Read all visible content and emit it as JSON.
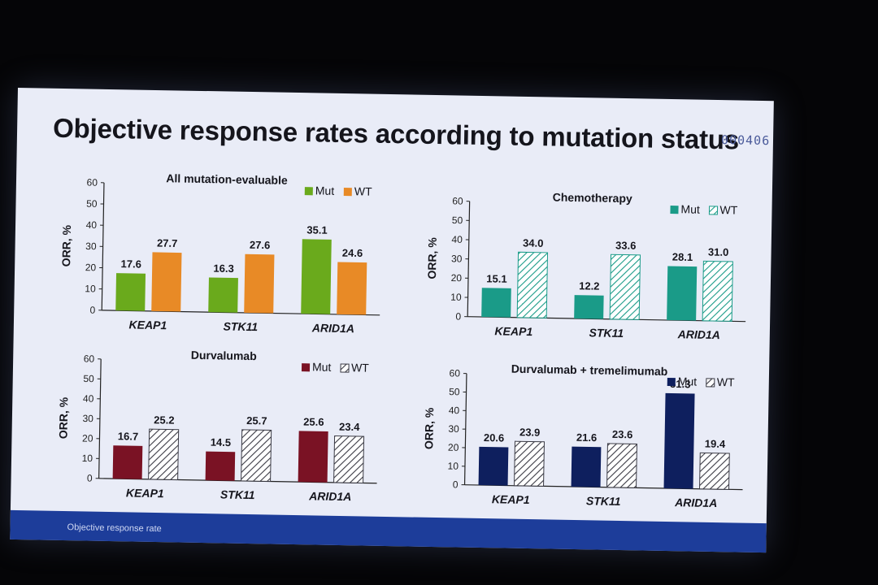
{
  "slide": {
    "title": "Objective response rates according to mutation status",
    "counter": "000406",
    "footnote": "Objective response rate"
  },
  "colors": {
    "chemo": "#1a9b88",
    "durva": "#7a1224",
    "durva_treme": "#0e1f5e",
    "all_mut": "#6aaa1c",
    "all_wt": "#e88a26",
    "footer": "#1d3d9a"
  },
  "chart_data": [
    {
      "id": "c0",
      "type": "bar",
      "title": "All mutation-evaluable",
      "ylabel": "ORR, %",
      "ylim": [
        0,
        60
      ],
      "yticks": [
        0,
        10,
        20,
        30,
        40,
        50,
        60
      ],
      "categories": [
        "KEAP1",
        "STK11",
        "ARID1A"
      ],
      "series": [
        {
          "name": "Mut",
          "values": [
            17.6,
            16.3,
            35.1
          ],
          "color": "#6aaa1c",
          "pattern": "solid"
        },
        {
          "name": "WT",
          "values": [
            27.7,
            27.6,
            24.6
          ],
          "color": "#e88a26",
          "pattern": "solid"
        }
      ]
    },
    {
      "id": "c1",
      "type": "bar",
      "title": "Chemotherapy",
      "ylabel": "ORR, %",
      "ylim": [
        0,
        60
      ],
      "yticks": [
        0,
        10,
        20,
        30,
        40,
        50,
        60
      ],
      "categories": [
        "KEAP1",
        "STK11",
        "ARID1A"
      ],
      "series": [
        {
          "name": "Mut",
          "values": [
            15.1,
            12.2,
            28.1
          ],
          "color": "#1a9b88",
          "pattern": "solid"
        },
        {
          "name": "WT",
          "values": [
            34.0,
            33.6,
            31.0
          ],
          "color": "#1a9b88",
          "pattern": "hatch"
        }
      ]
    },
    {
      "id": "c2",
      "type": "bar",
      "title": "Durvalumab",
      "ylabel": "ORR, %",
      "ylim": [
        0,
        60
      ],
      "yticks": [
        0,
        10,
        20,
        30,
        40,
        50,
        60
      ],
      "categories": [
        "KEAP1",
        "STK11",
        "ARID1A"
      ],
      "series": [
        {
          "name": "Mut",
          "values": [
            16.7,
            14.5,
            25.6
          ],
          "color": "#7a1224",
          "pattern": "solid"
        },
        {
          "name": "WT",
          "values": [
            25.2,
            25.7,
            23.4
          ],
          "color": "#3a3a44",
          "pattern": "hatch"
        }
      ]
    },
    {
      "id": "c3",
      "type": "bar",
      "title": "Durvalumab + tremelimumab",
      "ylabel": "ORR, %",
      "ylim": [
        0,
        60
      ],
      "yticks": [
        0,
        10,
        20,
        30,
        40,
        50,
        60
      ],
      "categories": [
        "KEAP1",
        "STK11",
        "ARID1A"
      ],
      "series": [
        {
          "name": "Mut",
          "values": [
            20.6,
            21.6,
            51.3
          ],
          "color": "#0e1f5e",
          "pattern": "solid"
        },
        {
          "name": "WT",
          "values": [
            23.9,
            23.6,
            19.4
          ],
          "color": "#3a3a44",
          "pattern": "hatch"
        }
      ]
    }
  ]
}
